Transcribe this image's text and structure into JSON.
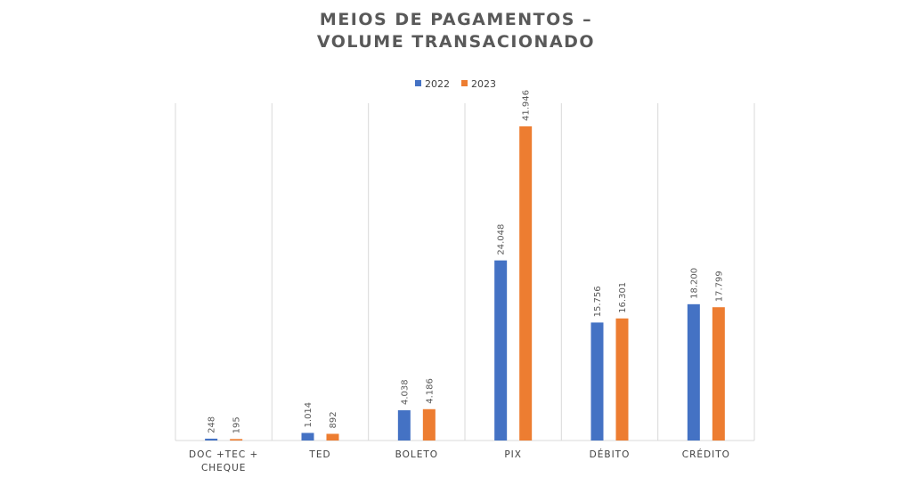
{
  "chart_data": {
    "type": "bar",
    "title_lines": [
      "MEIOS DE PAGAMENTOS –",
      "VOLUME TRANSACIONADO"
    ],
    "categories": [
      [
        "DOC +TEC +",
        "CHEQUE"
      ],
      [
        "TED"
      ],
      [
        "BOLETO"
      ],
      [
        "PIX"
      ],
      [
        "DÉBITO"
      ],
      [
        "CRÉDITO"
      ]
    ],
    "series": [
      {
        "name": "2022",
        "color": "#4472C4",
        "values": [
          248,
          1014,
          4038,
          24048,
          15756,
          18200
        ],
        "labels": [
          "248",
          "1.014",
          "4.038",
          "24.048",
          "15.756",
          "18.200"
        ]
      },
      {
        "name": "2023",
        "color": "#ED7D31",
        "values": [
          195,
          892,
          4186,
          41946,
          16301,
          17799
        ],
        "labels": [
          "195",
          "892",
          "4.186",
          "41.946",
          "16.301",
          "17.799"
        ]
      }
    ],
    "ylim": [
      0,
      45000
    ],
    "legend": "top-center",
    "grid": "vertical category separators"
  }
}
